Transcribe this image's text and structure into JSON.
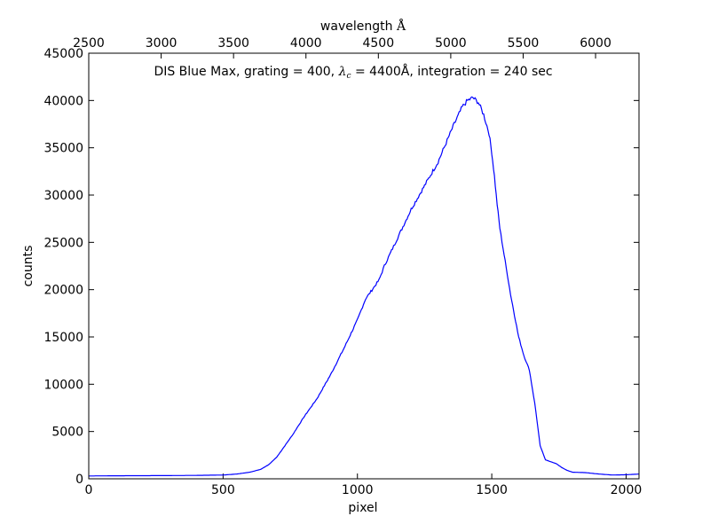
{
  "chart_data": {
    "type": "line",
    "xlabel": "pixel",
    "ylabel": "counts",
    "top_axis_label": "wavelength",
    "top_axis_unit": "Å",
    "annotation": {
      "prefix": "DIS Blue Max, grating = 400, ",
      "lambda_symbol": "λ",
      "lambda_sub": "c",
      "suffix": " = 4400Å, integration = 240 sec"
    },
    "xlim": [
      0,
      2048
    ],
    "ylim": [
      0,
      45000
    ],
    "x_ticks": [
      "0",
      "500",
      "1000",
      "1500",
      "2000"
    ],
    "y_ticks": [
      "0",
      "5000",
      "10000",
      "15000",
      "20000",
      "25000",
      "30000",
      "35000",
      "40000",
      "45000"
    ],
    "top_axis_range": [
      2500,
      6300
    ],
    "top_ticks": [
      "2500",
      "3000",
      "3500",
      "4000",
      "4500",
      "5000",
      "5500",
      "6000"
    ],
    "line_color": "#0000ff",
    "series": [
      {
        "x": [
          0,
          100,
          200,
          300,
          400,
          500,
          550,
          600,
          640,
          670,
          700,
          730,
          760,
          800,
          850,
          900,
          950,
          1000,
          1030,
          1050,
          1080,
          1100,
          1150,
          1200,
          1250,
          1300,
          1330,
          1360,
          1390,
          1410,
          1430,
          1450,
          1470,
          1490,
          1500,
          1510,
          1520,
          1530,
          1550,
          1570,
          1600,
          1620,
          1640,
          1660,
          1680,
          1700,
          1720,
          1740,
          1760,
          1780,
          1800,
          1850,
          1900,
          1950,
          2000,
          2048
        ],
        "y": [
          300,
          320,
          330,
          340,
          360,
          400,
          500,
          700,
          1000,
          1500,
          2300,
          3500,
          4700,
          6500,
          8500,
          11000,
          13800,
          16800,
          19000,
          19800,
          21000,
          22500,
          25500,
          28500,
          31000,
          33500,
          35500,
          37500,
          39300,
          40000,
          40300,
          39800,
          38500,
          36500,
          34500,
          32000,
          29000,
          26500,
          23000,
          19500,
          15000,
          13000,
          11500,
          8000,
          3500,
          2000,
          1800,
          1600,
          1200,
          900,
          700,
          650,
          500,
          400,
          430,
          500
        ]
      }
    ]
  }
}
